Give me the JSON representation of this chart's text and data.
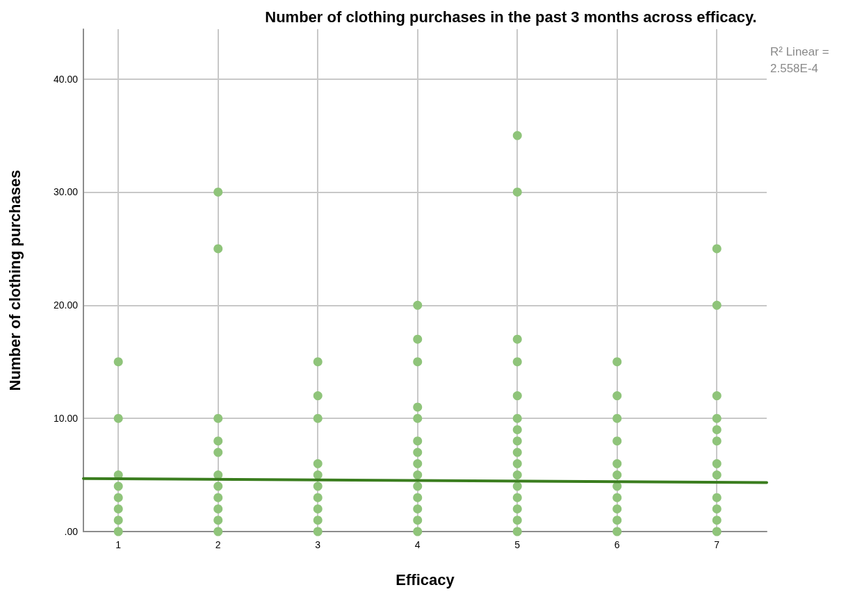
{
  "chart_data": {
    "type": "scatter",
    "title": "Number of clothing purchases in the past 3 months across efficacy.",
    "xlabel": "Efficacy",
    "ylabel": "Number of clothing purchases",
    "annotations": [
      "R² Linear = 2.558E-4"
    ],
    "xlim": [
      0.65,
      7.5
    ],
    "xticks": [
      1,
      2,
      3,
      4,
      5,
      6,
      7
    ],
    "ylim": [
      0,
      44.4
    ],
    "yticks": [
      {
        "value": 0,
        "label": ".00"
      },
      {
        "value": 10,
        "label": "10.00"
      },
      {
        "value": 20,
        "label": "20.00"
      },
      {
        "value": 30,
        "label": "30.00"
      },
      {
        "value": 40,
        "label": "40.00"
      }
    ],
    "grid": true,
    "marker": "circle",
    "series": [
      {
        "color": "#8fc47a",
        "x": [
          1,
          1,
          1,
          1,
          1,
          1,
          1,
          1,
          2,
          2,
          2,
          2,
          2,
          2,
          2,
          2,
          2,
          2,
          2,
          3,
          3,
          3,
          3,
          3,
          3,
          3,
          3,
          3,
          3,
          4,
          4,
          4,
          4,
          4,
          4,
          4,
          4,
          4,
          4,
          4,
          4,
          4,
          4,
          5,
          5,
          5,
          5,
          5,
          5,
          5,
          5,
          5,
          5,
          5,
          5,
          5,
          5,
          5,
          5,
          6,
          6,
          6,
          6,
          6,
          6,
          6,
          6,
          6,
          6,
          6,
          7,
          7,
          7,
          7,
          7,
          7,
          7,
          7,
          7,
          7,
          7,
          7
        ],
        "values": [
          15,
          10,
          5,
          4,
          3,
          2,
          1,
          0,
          30,
          25,
          10,
          8,
          7,
          5,
          4,
          3,
          2,
          1,
          0,
          15,
          12,
          10,
          6,
          5,
          4,
          3,
          2,
          1,
          0,
          20,
          17,
          15,
          11,
          10,
          8,
          7,
          6,
          5,
          4,
          3,
          2,
          1,
          0,
          35,
          30,
          17,
          15,
          12,
          10,
          9,
          8,
          7,
          6,
          5,
          4,
          3,
          2,
          1,
          0,
          15,
          12,
          10,
          8,
          6,
          5,
          4,
          3,
          2,
          1,
          0,
          25,
          20,
          12,
          10,
          9,
          8,
          6,
          5,
          3,
          2,
          1,
          0
        ]
      },
      {
        "type": "line",
        "color": "#3a7d1e",
        "marker": "none",
        "line_style": "solid",
        "x": [
          0.65,
          7.5
        ],
        "values": [
          4.69,
          4.33
        ]
      }
    ]
  }
}
